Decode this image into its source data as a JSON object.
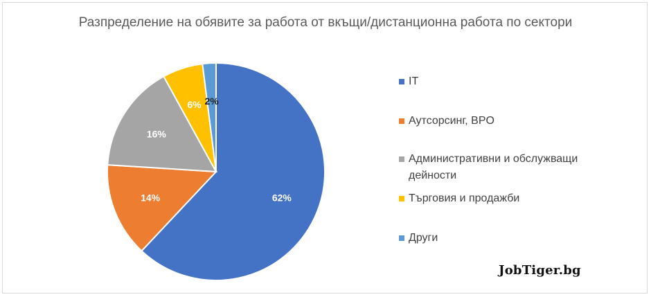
{
  "chart_data": {
    "type": "pie",
    "title": "Разпределение на обявите за работа от вкъщи/дистанционна работа по сектори",
    "categories": [
      "IT",
      "Аутсорсинг, BPO",
      "Административни и обслужващи дейности",
      "Търговия и продажби",
      "Други"
    ],
    "values": [
      62,
      14,
      16,
      6,
      2
    ],
    "data_labels": [
      "62%",
      "14%",
      "16%",
      "6%",
      "2%"
    ],
    "colors": [
      "#4472c4",
      "#ed7d31",
      "#a5a5a5",
      "#ffc000",
      "#5b9bd5"
    ],
    "legend_position": "right"
  },
  "watermark": "JobTiger.bg"
}
